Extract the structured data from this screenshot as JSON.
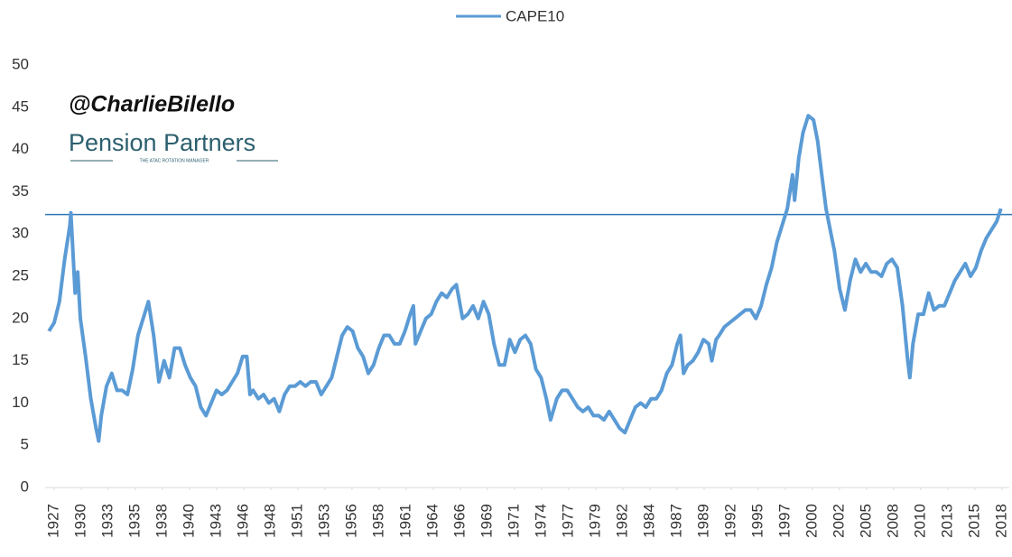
{
  "chart_data": {
    "type": "line",
    "annotations": [
      "@CharlieBilello",
      "Pension Partners",
      "THE ATAC ROTATION MANAGER"
    ],
    "series": [
      {
        "name": "CAPE10",
        "color": "#5b9bd5",
        "x": [
          1927.0,
          1927.5,
          1928.0,
          1928.5,
          1929.0,
          1929.1,
          1929.5,
          1929.75,
          1930.0,
          1930.5,
          1931.0,
          1931.5,
          1931.75,
          1932.0,
          1932.5,
          1933.0,
          1933.5,
          1934.0,
          1934.5,
          1935.0,
          1935.5,
          1936.0,
          1936.5,
          1937.0,
          1937.5,
          1938.0,
          1938.5,
          1939.0,
          1939.5,
          1940.0,
          1940.5,
          1941.0,
          1941.5,
          1942.0,
          1942.5,
          1943.0,
          1943.5,
          1944.0,
          1944.5,
          1945.0,
          1945.5,
          1945.9,
          1946.2,
          1946.5,
          1947.0,
          1947.5,
          1948.0,
          1948.5,
          1949.0,
          1949.5,
          1950.0,
          1950.5,
          1951.0,
          1951.5,
          1952.0,
          1952.5,
          1953.0,
          1953.5,
          1954.0,
          1954.5,
          1955.0,
          1955.5,
          1956.0,
          1956.5,
          1957.0,
          1957.5,
          1958.0,
          1958.5,
          1959.0,
          1959.5,
          1960.0,
          1960.5,
          1961.0,
          1961.5,
          1961.8,
          1962.0,
          1962.5,
          1963.0,
          1963.5,
          1964.0,
          1964.5,
          1965.0,
          1965.5,
          1965.9,
          1966.5,
          1967.0,
          1967.5,
          1968.0,
          1968.5,
          1969.0,
          1969.5,
          1970.0,
          1970.5,
          1971.0,
          1971.5,
          1972.0,
          1972.5,
          1973.0,
          1973.5,
          1974.0,
          1974.5,
          1974.9,
          1975.5,
          1976.0,
          1976.5,
          1977.0,
          1977.5,
          1978.0,
          1978.5,
          1979.0,
          1979.5,
          1980.0,
          1980.5,
          1981.0,
          1981.5,
          1982.0,
          1982.5,
          1983.0,
          1983.5,
          1984.0,
          1984.5,
          1985.0,
          1985.5,
          1986.0,
          1986.5,
          1987.0,
          1987.3,
          1987.6,
          1988.0,
          1988.5,
          1989.0,
          1989.5,
          1990.0,
          1990.3,
          1990.7,
          1991.0,
          1991.5,
          1992.0,
          1992.5,
          1993.0,
          1993.5,
          1994.0,
          1994.5,
          1995.0,
          1995.5,
          1996.0,
          1996.5,
          1997.0,
          1997.5,
          1998.0,
          1998.2,
          1998.6,
          1999.0,
          1999.5,
          2000.0,
          2000.4,
          2000.8,
          2001.2,
          2001.6,
          2002.0,
          2002.5,
          2003.0,
          2003.5,
          2004.0,
          2004.5,
          2005.0,
          2005.5,
          2006.0,
          2006.5,
          2007.0,
          2007.5,
          2008.0,
          2008.5,
          2009.0,
          2009.2,
          2009.5,
          2010.0,
          2010.5,
          2011.0,
          2011.5,
          2012.0,
          2012.5,
          2013.0,
          2013.5,
          2014.0,
          2014.5,
          2015.0,
          2015.5,
          2016.0,
          2016.5,
          2017.0,
          2017.5,
          2017.9
        ],
        "values": [
          18.5,
          19.5,
          22,
          27,
          31,
          32.5,
          23,
          25.5,
          20,
          15.5,
          10.5,
          7,
          5.5,
          8.5,
          12,
          13.5,
          11.5,
          11.5,
          11,
          14,
          18,
          20,
          22,
          18,
          12.5,
          15,
          13,
          16.5,
          16.5,
          14.5,
          13,
          12,
          9.5,
          8.5,
          10,
          11.5,
          11,
          11.5,
          12.5,
          13.5,
          15.5,
          15.5,
          11,
          11.5,
          10.5,
          11,
          10,
          10.5,
          9,
          11,
          12,
          12,
          12.5,
          12,
          12.5,
          12.5,
          11,
          12,
          13,
          15.5,
          18,
          19,
          18.5,
          16.5,
          15.5,
          13.5,
          14.5,
          16.5,
          18,
          18,
          17,
          17,
          18.5,
          20.5,
          21.5,
          17,
          18.5,
          20,
          20.5,
          22,
          23,
          22.5,
          23.5,
          24,
          20,
          20.5,
          21.5,
          20,
          22,
          20.5,
          17,
          14.5,
          14.5,
          17.5,
          16,
          17.5,
          18,
          17,
          14,
          13,
          10.5,
          8,
          10.5,
          11.5,
          11.5,
          10.5,
          9.5,
          9,
          9.5,
          8.5,
          8.5,
          8,
          9,
          8,
          7,
          6.5,
          8,
          9.5,
          10,
          9.5,
          10.5,
          10.5,
          11.5,
          13.5,
          14.5,
          17,
          18,
          13.5,
          14.5,
          15,
          16,
          17.5,
          17,
          15,
          17.5,
          18,
          19,
          19.5,
          20,
          20.5,
          21,
          21,
          20,
          21.5,
          24,
          26,
          29,
          31,
          33,
          37,
          34,
          39,
          42,
          44,
          43.5,
          41,
          37,
          33,
          30.5,
          28,
          23.5,
          21,
          24.5,
          27,
          25.5,
          26.5,
          25.5,
          25.5,
          25,
          26.5,
          27,
          26,
          21.5,
          15,
          13,
          17,
          20.5,
          20.5,
          23,
          21,
          21.5,
          21.5,
          23,
          24.5,
          25.5,
          26.5,
          25,
          26,
          28,
          29.5,
          30.5,
          31.5,
          33
        ]
      }
    ],
    "reference_line": 32.3,
    "reference_color": "#2e75b6",
    "xlim": [
      1926.64,
      2018.7
    ],
    "xticks": [
      {
        "value": 1927.5,
        "label": "1927"
      },
      {
        "value": 1930.09,
        "label": "1930"
      },
      {
        "value": 1932.67,
        "label": "1933"
      },
      {
        "value": 1935.26,
        "label": "1935"
      },
      {
        "value": 1937.84,
        "label": "1938"
      },
      {
        "value": 1940.43,
        "label": "1940"
      },
      {
        "value": 1943.01,
        "label": "1943"
      },
      {
        "value": 1945.6,
        "label": "1946"
      },
      {
        "value": 1948.19,
        "label": "1948"
      },
      {
        "value": 1950.77,
        "label": "1951"
      },
      {
        "value": 1953.36,
        "label": "1953"
      },
      {
        "value": 1955.94,
        "label": "1956"
      },
      {
        "value": 1958.53,
        "label": "1958"
      },
      {
        "value": 1961.11,
        "label": "1961"
      },
      {
        "value": 1963.7,
        "label": "1964"
      },
      {
        "value": 1966.29,
        "label": "1966"
      },
      {
        "value": 1968.87,
        "label": "1969"
      },
      {
        "value": 1971.46,
        "label": "1971"
      },
      {
        "value": 1974.04,
        "label": "1974"
      },
      {
        "value": 1976.63,
        "label": "1977"
      },
      {
        "value": 1979.21,
        "label": "1979"
      },
      {
        "value": 1981.8,
        "label": "1982"
      },
      {
        "value": 1984.39,
        "label": "1984"
      },
      {
        "value": 1986.97,
        "label": "1987"
      },
      {
        "value": 1989.56,
        "label": "1989"
      },
      {
        "value": 1992.14,
        "label": "1992"
      },
      {
        "value": 1994.73,
        "label": "1995"
      },
      {
        "value": 1997.31,
        "label": "1997"
      },
      {
        "value": 1999.9,
        "label": "2000"
      },
      {
        "value": 2002.49,
        "label": "2002"
      },
      {
        "value": 2005.07,
        "label": "2005"
      },
      {
        "value": 2007.66,
        "label": "2008"
      },
      {
        "value": 2010.24,
        "label": "2010"
      },
      {
        "value": 2012.83,
        "label": "2013"
      },
      {
        "value": 2015.41,
        "label": "2015"
      },
      {
        "value": 2018.0,
        "label": "2018"
      }
    ],
    "ylim": [
      0,
      50
    ],
    "yticks": [
      0,
      5,
      10,
      15,
      20,
      25,
      30,
      35,
      40,
      45,
      50
    ],
    "legend": "top"
  }
}
